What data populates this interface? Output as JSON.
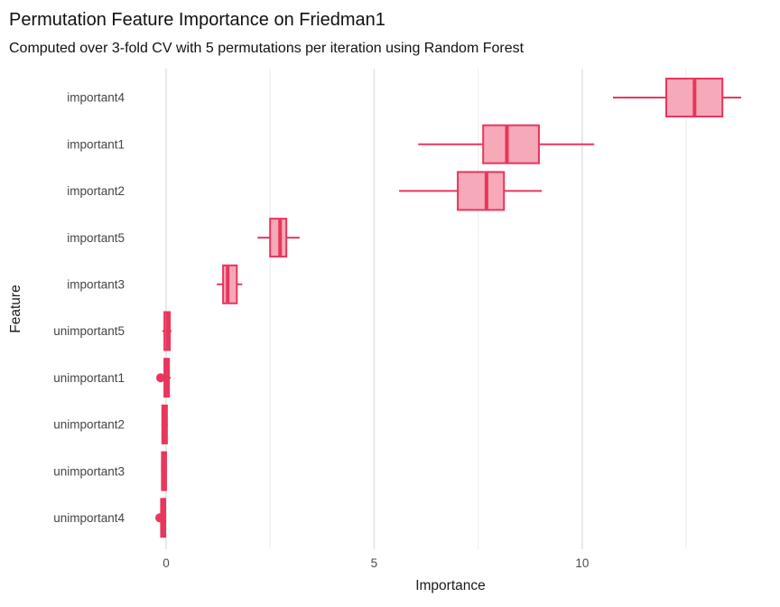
{
  "title": "Permutation Feature Importance on Friedman1",
  "subtitle": "Computed over 3-fold CV with 5 permutations per iteration using Random Forest",
  "colors": {
    "box_stroke": "#e8365c",
    "box_fill": "#f6a9b8",
    "grid_major": "#e2e2e2",
    "grid_minor": "#f0f0f0",
    "text_dark": "#1a1a1a",
    "text_gray": "#4d4d4d"
  },
  "chart_data": {
    "type": "boxplot",
    "orientation": "horizontal",
    "title": "Permutation Feature Importance on Friedman1",
    "subtitle": "Computed over 3-fold CV with 5 permutations per iteration using Random Forest",
    "xlabel": "Importance",
    "ylabel": "Feature",
    "xlim": [
      -0.78,
      14.45
    ],
    "x_major_ticks": [
      0,
      5,
      10
    ],
    "x_tick_labels": [
      "0",
      "5",
      "10"
    ],
    "x_minor_gridlines": [
      2.5,
      7.5,
      12.5
    ],
    "grid": "vertical-major-and-minor",
    "legend": "none",
    "categories": [
      "important4",
      "important1",
      "important2",
      "important5",
      "important3",
      "unimportant5",
      "unimportant1",
      "unimportant2",
      "unimportant3",
      "unimportant4"
    ],
    "series": [
      {
        "name": "important4",
        "whisker_low": 10.74,
        "q1": 12.02,
        "median": 12.7,
        "q3": 13.37,
        "whisker_high": 13.82,
        "outliers": []
      },
      {
        "name": "important1",
        "whisker_low": 6.06,
        "q1": 7.62,
        "median": 8.19,
        "q3": 8.96,
        "whisker_high": 10.29,
        "outliers": []
      },
      {
        "name": "important2",
        "whisker_low": 5.6,
        "q1": 7.01,
        "median": 7.7,
        "q3": 8.12,
        "whisker_high": 9.03,
        "outliers": []
      },
      {
        "name": "important5",
        "whisker_low": 2.2,
        "q1": 2.5,
        "median": 2.74,
        "q3": 2.89,
        "whisker_high": 3.21,
        "outliers": []
      },
      {
        "name": "important3",
        "whisker_low": 1.22,
        "q1": 1.37,
        "median": 1.48,
        "q3": 1.7,
        "whisker_high": 1.83,
        "outliers": []
      },
      {
        "name": "unimportant5",
        "whisker_low": -0.09,
        "q1": -0.04,
        "median": 0.03,
        "q3": 0.09,
        "whisker_high": 0.13,
        "outliers": []
      },
      {
        "name": "unimportant1",
        "whisker_low": -0.07,
        "q1": -0.04,
        "median": 0.02,
        "q3": 0.07,
        "whisker_high": 0.11,
        "outliers": [
          -0.13
        ]
      },
      {
        "name": "unimportant2",
        "whisker_low": -0.11,
        "q1": -0.09,
        "median": -0.03,
        "q3": 0.02,
        "whisker_high": 0.04,
        "outliers": []
      },
      {
        "name": "unimportant3",
        "whisker_low": -0.12,
        "q1": -0.1,
        "median": -0.04,
        "q3": 0.0,
        "whisker_high": 0.02,
        "outliers": []
      },
      {
        "name": "unimportant4",
        "whisker_low": -0.14,
        "q1": -0.12,
        "median": -0.07,
        "q3": -0.02,
        "whisker_high": 0.0,
        "outliers": [
          -0.15
        ]
      }
    ]
  }
}
